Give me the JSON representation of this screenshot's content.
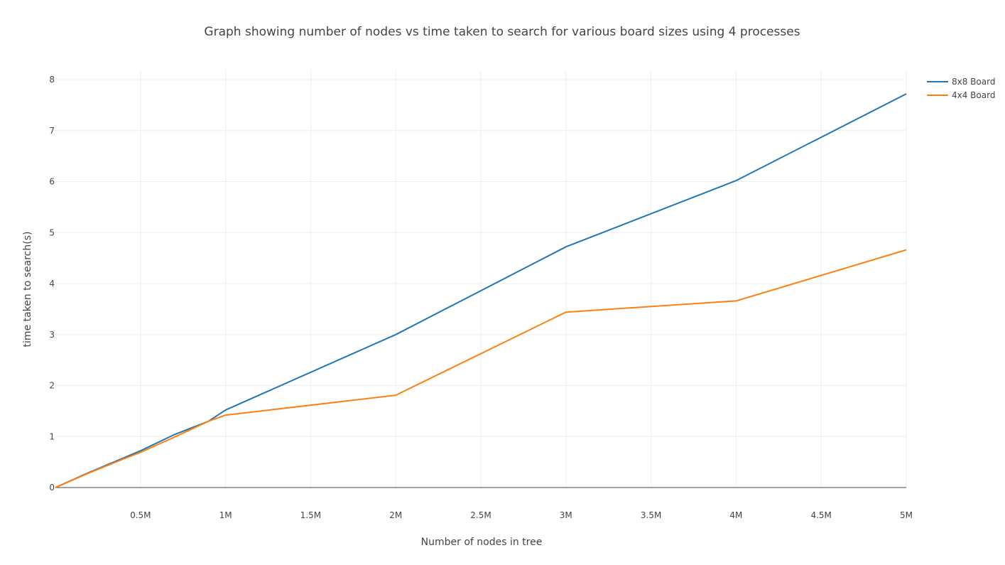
{
  "chart_data": {
    "type": "line",
    "title": "Graph showing number of nodes vs time taken to search for various board sizes using 4 processes",
    "xlabel": "Number of nodes in tree",
    "ylabel": "time taken to search(s)",
    "xlim": [
      0,
      5000000
    ],
    "ylim": [
      0,
      8
    ],
    "x_ticks": [
      500000,
      1000000,
      1500000,
      2000000,
      2500000,
      3000000,
      3500000,
      4000000,
      4500000,
      5000000
    ],
    "x_tick_labels": [
      "0.5M",
      "1M",
      "1.5M",
      "2M",
      "2.5M",
      "3M",
      "3.5M",
      "4M",
      "4.5M",
      "5M"
    ],
    "y_ticks": [
      0,
      1,
      2,
      3,
      4,
      5,
      6,
      7,
      8
    ],
    "y_tick_labels": [
      "0",
      "1",
      "2",
      "3",
      "4",
      "5",
      "6",
      "7",
      "8"
    ],
    "grid": true,
    "legend_position": "top-right",
    "series": [
      {
        "name": "8x8 Board",
        "color": "#1f77b4",
        "x": [
          0,
          200000,
          400000,
          500000,
          700000,
          900000,
          1000000,
          2000000,
          3000000,
          4000000,
          5000000
        ],
        "y": [
          0,
          0.3,
          0.58,
          0.72,
          1.04,
          1.3,
          1.52,
          3.0,
          4.72,
          6.02,
          7.72
        ]
      },
      {
        "name": "4x4 Board",
        "color": "#ff7f0e",
        "x": [
          0,
          200000,
          400000,
          500000,
          700000,
          900000,
          1000000,
          2000000,
          3000000,
          4000000,
          5000000
        ],
        "y": [
          0,
          0.29,
          0.56,
          0.69,
          0.99,
          1.3,
          1.42,
          1.81,
          3.44,
          3.66,
          4.66
        ]
      }
    ]
  }
}
